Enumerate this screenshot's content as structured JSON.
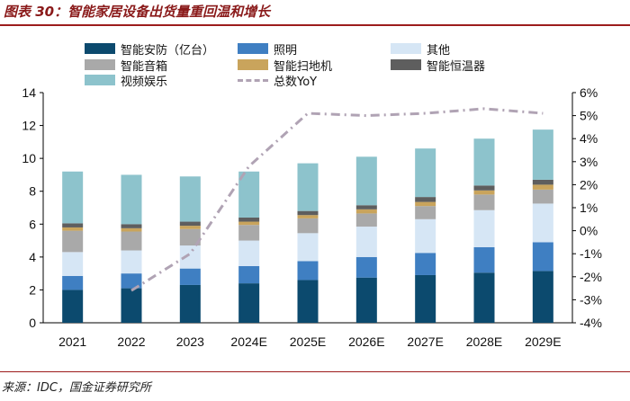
{
  "title": "图表 30：智能家居设备出货量重回温和增长",
  "source": "来源：IDC，国金证券研究所",
  "colors": {
    "smart_security": "#0c4a6e",
    "lighting": "#3f7fc2",
    "others": "#d6e6f5",
    "smart_speaker": "#a9a9a9",
    "robot_vacuum": "#c9a45c",
    "smart_thermostat": "#5e5e5e",
    "video_entertainment": "#8dc3cc",
    "yoy_line": "#b0a3b4"
  },
  "chart_data": {
    "type": "stacked-bar+line",
    "title": "智能家居设备出货量重回温和增长",
    "categories": [
      "2021",
      "2022",
      "2023",
      "2024E",
      "2025E",
      "2026E",
      "2027E",
      "2028E",
      "2029E"
    ],
    "y_left": {
      "min": 0,
      "max": 14,
      "ticks": [
        "0",
        "2",
        "4",
        "6",
        "8",
        "10",
        "12",
        "14"
      ]
    },
    "y_right": {
      "min": -4,
      "max": 6,
      "ticks": [
        "-4%",
        "-3%",
        "-2%",
        "-1%",
        "0%",
        "1%",
        "2%",
        "3%",
        "4%",
        "5%",
        "6%"
      ]
    },
    "series": [
      {
        "name": "智能安防（亿台）",
        "key": "smart_security",
        "values": [
          2.0,
          2.1,
          2.3,
          2.4,
          2.6,
          2.75,
          2.9,
          3.05,
          3.15
        ]
      },
      {
        "name": "照明",
        "key": "lighting",
        "values": [
          0.85,
          0.9,
          1.0,
          1.05,
          1.15,
          1.25,
          1.35,
          1.55,
          1.75
        ]
      },
      {
        "name": "其他",
        "key": "others",
        "values": [
          1.45,
          1.4,
          1.4,
          1.55,
          1.7,
          1.85,
          2.05,
          2.25,
          2.35
        ]
      },
      {
        "name": "智能音箱",
        "key": "smart_speaker",
        "values": [
          1.3,
          1.15,
          1.0,
          0.95,
          0.9,
          0.8,
          0.8,
          0.95,
          0.85
        ]
      },
      {
        "name": "智能扫地机",
        "key": "robot_vacuum",
        "values": [
          0.2,
          0.2,
          0.2,
          0.2,
          0.2,
          0.25,
          0.25,
          0.25,
          0.3
        ]
      },
      {
        "name": "智能恒温器",
        "key": "smart_thermostat",
        "values": [
          0.25,
          0.25,
          0.25,
          0.25,
          0.25,
          0.25,
          0.3,
          0.3,
          0.3
        ]
      },
      {
        "name": "视频娱乐",
        "key": "video_entertainment",
        "values": [
          3.15,
          3.0,
          2.75,
          2.8,
          2.9,
          2.95,
          2.95,
          2.85,
          3.05
        ]
      }
    ],
    "line_series": {
      "name": "总数YoY",
      "key": "yoy_line",
      "axis": "right",
      "values": [
        null,
        -2.6,
        -1.0,
        2.8,
        5.1,
        5.0,
        5.1,
        5.3,
        5.1
      ]
    }
  }
}
